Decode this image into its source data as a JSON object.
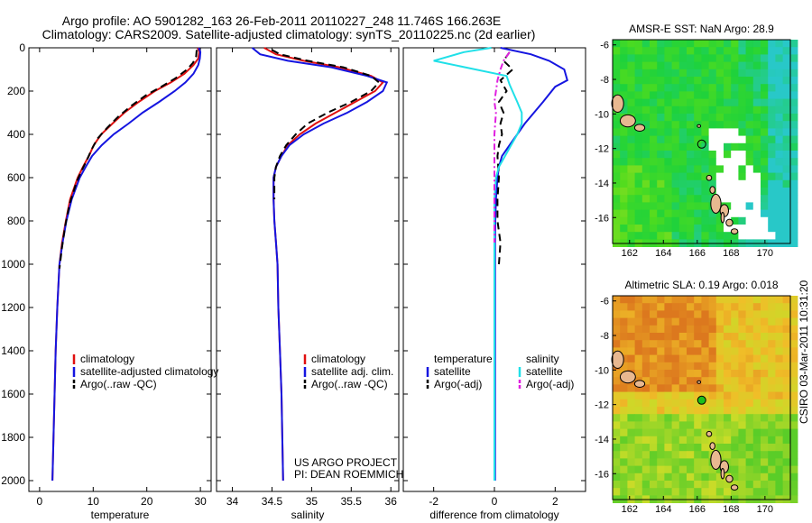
{
  "titles": {
    "line1": "Argo profile: AO 5901282_163 26-Feb-2011 20110227_248 11.746S 166.263E",
    "line2": "Climatology: CARS2009. Satellite-adjusted climatology: synTS_20110225.nc (2d earlier)"
  },
  "colors": {
    "climatology": "#e01010",
    "satellite": "#1515e0",
    "argo": "#000000",
    "sat_salinity": "#20e0e8",
    "argo_adj": "#e020e0"
  },
  "chart_data": [
    {
      "type": "line",
      "id": "temperature-panel",
      "xlabel": "temperature",
      "ylabel": "depth",
      "xlim": [
        -2,
        32
      ],
      "ylim": [
        2050,
        0
      ],
      "xticks": [
        0,
        10,
        20,
        30
      ],
      "yticks": [
        0,
        200,
        400,
        600,
        800,
        1000,
        1200,
        1400,
        1600,
        1800,
        2000
      ],
      "series": [
        {
          "name": "climatology",
          "color": "#e01010",
          "dash": "solid",
          "x": [
            29.5,
            29.8,
            29.6,
            28.7,
            27.0,
            24.5,
            21.5,
            18.5,
            15.8,
            13.6,
            11.5,
            10.1,
            9.2,
            8.1,
            7.1,
            5.7,
            4.9,
            4.2,
            3.7,
            3.3,
            3.0,
            2.8,
            2.6,
            2.5,
            2.4
          ],
          "y": [
            0,
            20,
            50,
            80,
            120,
            160,
            200,
            250,
            300,
            350,
            400,
            450,
            500,
            550,
            600,
            700,
            800,
            900,
            1000,
            1200,
            1400,
            1600,
            1800,
            1900,
            2000
          ]
        },
        {
          "name": "satellite-adjusted climatology",
          "color": "#1515e0",
          "dash": "solid",
          "x": [
            29.7,
            30.0,
            29.9,
            29.6,
            28.7,
            27.2,
            25.2,
            22.3,
            19.2,
            16.6,
            13.8,
            11.6,
            9.8,
            8.6,
            7.5,
            6.0,
            5.0,
            4.3,
            3.7,
            3.3,
            3.0,
            2.8,
            2.6,
            2.5,
            2.4
          ],
          "y": [
            0,
            20,
            50,
            80,
            120,
            160,
            200,
            250,
            300,
            350,
            400,
            450,
            500,
            550,
            600,
            700,
            800,
            900,
            1000,
            1200,
            1400,
            1600,
            1800,
            1900,
            2000
          ]
        },
        {
          "name": "Argo(..raw -QC)",
          "color": "#000000",
          "dash": "dash",
          "x": [
            29.3,
            29.2,
            28.6,
            27.5,
            25.4,
            22.7,
            19.8,
            17.0,
            14.6,
            12.6,
            10.8,
            9.7,
            8.8,
            7.8,
            6.9,
            5.6,
            4.8,
            4.2,
            3.7
          ],
          "y": [
            10,
            40,
            70,
            100,
            140,
            180,
            220,
            270,
            320,
            370,
            420,
            470,
            520,
            570,
            620,
            720,
            820,
            920,
            1020
          ]
        }
      ],
      "legend": {
        "entries": [
          "climatology",
          "satellite-adjusted climatology",
          "Argo(..raw -QC)"
        ]
      }
    },
    {
      "type": "line",
      "id": "salinity-panel",
      "xlabel": "salinity",
      "ylabel": "depth",
      "xlim": [
        33.8,
        36.1
      ],
      "ylim": [
        2050,
        0
      ],
      "xticks": [
        34,
        34.5,
        35,
        35.5,
        36
      ],
      "yticks": [
        0,
        200,
        400,
        600,
        800,
        1000,
        1200,
        1400,
        1600,
        1800,
        2000
      ],
      "series": [
        {
          "name": "climatology",
          "color": "#e01010",
          "dash": "solid",
          "x": [
            34.4,
            34.55,
            34.9,
            35.35,
            35.75,
            35.9,
            35.8,
            35.55,
            35.3,
            35.05,
            34.85,
            34.7,
            34.62,
            34.55,
            34.52,
            34.52,
            34.53,
            34.55,
            34.57,
            34.58,
            34.6,
            34.62,
            34.63,
            34.64
          ],
          "y": [
            0,
            30,
            60,
            90,
            130,
            160,
            200,
            250,
            300,
            350,
            400,
            450,
            500,
            550,
            600,
            700,
            800,
            900,
            1000,
            1200,
            1400,
            1600,
            1800,
            2000
          ]
        },
        {
          "name": "satellite adj. clim.",
          "color": "#1515e0",
          "dash": "solid",
          "x": [
            34.25,
            34.35,
            34.7,
            35.25,
            35.7,
            35.95,
            35.9,
            35.7,
            35.45,
            35.15,
            34.9,
            34.72,
            34.62,
            34.55,
            34.52,
            34.52,
            34.53,
            34.55,
            34.57,
            34.58,
            34.6,
            34.62,
            34.63,
            34.64
          ],
          "y": [
            0,
            30,
            60,
            90,
            130,
            160,
            200,
            250,
            300,
            350,
            400,
            450,
            500,
            550,
            600,
            700,
            800,
            900,
            1000,
            1200,
            1400,
            1600,
            1800,
            2000
          ]
        },
        {
          "name": "Argo(..raw -QC)",
          "color": "#000000",
          "dash": "dash",
          "x": [
            34.5,
            34.6,
            34.95,
            35.4,
            35.75,
            35.85,
            35.75,
            35.5,
            35.2,
            34.95,
            34.8,
            34.68,
            34.6,
            34.55,
            34.53,
            34.53
          ],
          "y": [
            10,
            30,
            60,
            90,
            130,
            160,
            200,
            250,
            300,
            350,
            400,
            450,
            500,
            550,
            600,
            700
          ]
        }
      ],
      "legend": {
        "entries": [
          "climatology",
          "satellite adj. clim.",
          "Argo(..raw -QC)"
        ]
      },
      "credit": {
        "line1": "US ARGO PROJECT",
        "line2": "PI: DEAN ROEMMICH"
      }
    },
    {
      "type": "line",
      "id": "difference-panel",
      "xlabel": "difference from climatology",
      "ylabel": "depth",
      "xlim": [
        -3,
        3
      ],
      "ylim": [
        2050,
        0
      ],
      "xticks": [
        -2,
        0,
        2
      ],
      "yticks": [
        0,
        200,
        400,
        600,
        800,
        1000,
        1200,
        1400,
        1600,
        1800,
        2000
      ],
      "series": [
        {
          "name": "temperature satellite",
          "color": "#1515e0",
          "dash": "solid",
          "x": [
            0.2,
            1.2,
            1.8,
            2.3,
            2.4,
            2.0,
            1.6,
            1.3,
            1.0,
            0.5,
            0.25,
            0.15,
            0.1,
            0.05,
            0.03,
            0.02,
            0.02,
            0.02,
            0.02,
            0.02
          ],
          "y": [
            0,
            30,
            60,
            100,
            150,
            180,
            250,
            300,
            350,
            450,
            500,
            550,
            600,
            700,
            800,
            900,
            1000,
            1200,
            1600,
            2000
          ]
        },
        {
          "name": "temperature Argo(-adj)",
          "color": "#000000",
          "dash": "dash",
          "x": [
            0.5,
            0.3,
            0.6,
            0.2,
            0.4,
            0.15,
            0.3,
            0.2,
            0.25,
            0.15,
            0.1,
            0.15,
            0.1,
            0.1,
            0.2,
            0.15
          ],
          "y": [
            20,
            60,
            100,
            150,
            200,
            250,
            300,
            350,
            400,
            450,
            500,
            600,
            700,
            800,
            900,
            1000
          ]
        },
        {
          "name": "salinity satellite",
          "color": "#20e0e8",
          "dash": "solid",
          "x": [
            -0.1,
            -1.0,
            -2.0,
            0.4,
            0.5,
            0.75,
            0.9,
            0.9,
            0.75,
            0.55,
            0.35,
            0.15,
            0.05,
            0.0,
            0.0,
            0.0,
            0.0,
            0.0,
            0.0
          ],
          "y": [
            0,
            20,
            60,
            130,
            170,
            250,
            300,
            350,
            400,
            450,
            500,
            550,
            600,
            700,
            800,
            1000,
            1400,
            1800,
            2000
          ]
        },
        {
          "name": "salinity Argo(-adj)",
          "color": "#e020e0",
          "dash": "dashdot",
          "x": [
            0.5,
            0.3,
            0.2,
            0.1,
            0.05,
            0.0,
            0.05,
            0.0,
            0.0,
            0.0,
            0.0,
            0.0,
            0.0
          ],
          "y": [
            20,
            60,
            100,
            150,
            200,
            250,
            300,
            400,
            500,
            600,
            700,
            800,
            900
          ]
        }
      ],
      "legend": {
        "col1_title": "temperature",
        "col2_title": "salinity",
        "entries": [
          "satellite",
          "Argo(-adj)",
          "satellite",
          "Argo(-adj)"
        ]
      }
    },
    {
      "type": "heatmap",
      "id": "sst-map",
      "title": "AMSR-E SST: NaN Argo: 28.9",
      "xlim": [
        161,
        171.5
      ],
      "ylim": [
        -17.5,
        -5.7
      ],
      "xticks": [
        162,
        164,
        166,
        168,
        170
      ],
      "yticks": [
        -6,
        -8,
        -10,
        -12,
        -14,
        -16
      ],
      "float_position": {
        "lon": 166.263,
        "lat": -11.746
      }
    },
    {
      "type": "heatmap",
      "id": "sla-map",
      "title": "Altimetric SLA: 0.19 Argo: 0.018",
      "xlim": [
        161,
        171.5
      ],
      "ylim": [
        -17.5,
        -5.7
      ],
      "xticks": [
        162,
        164,
        166,
        168,
        170
      ],
      "yticks": [
        -6,
        -8,
        -10,
        -12,
        -14,
        -16
      ],
      "float_position": {
        "lon": 166.263,
        "lat": -11.746
      }
    }
  ],
  "stamp": "CSIRO 03-Mar-2011 10:31:20"
}
